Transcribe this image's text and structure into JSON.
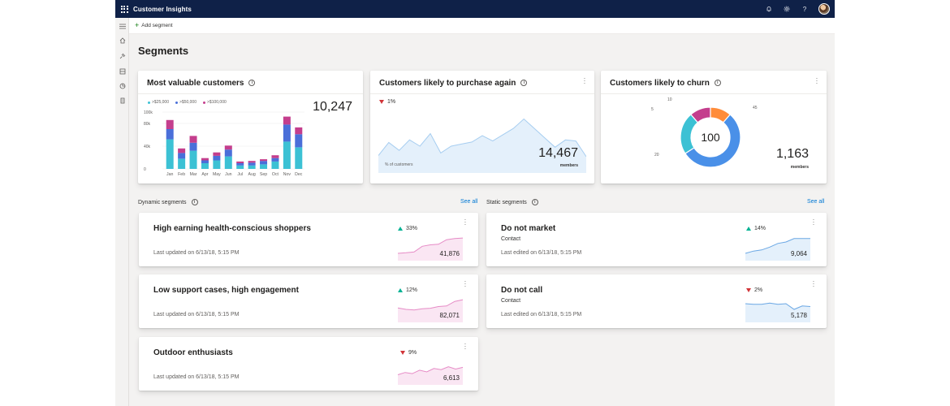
{
  "app": {
    "title": "Customer Insights"
  },
  "command_bar": {
    "add_segment": "Add segment"
  },
  "page": {
    "title": "Segments"
  },
  "cards": {
    "most_valuable": {
      "title": "Most valuable customers",
      "value": "10,247",
      "legend": [
        {
          "label": ">$25,000",
          "color": "#3cc1d4"
        },
        {
          "label": ">$50,000",
          "color": "#4a6fd9"
        },
        {
          "label": ">$100,000",
          "color": "#c43e8d"
        }
      ]
    },
    "purchase_again": {
      "title": "Customers likely to purchase again",
      "trend": "1%",
      "trend_direction": "down",
      "value": "14,467",
      "sub_label": "members",
      "chart_label": "% of customers"
    },
    "churn": {
      "title": "Customers likely to churn",
      "center_value": "100",
      "value": "1,163",
      "sub_label": "members",
      "labels": [
        "10",
        "45",
        "5",
        "20"
      ]
    }
  },
  "chart_data": [
    {
      "type": "bar",
      "stacked": true,
      "categories": [
        "Jan",
        "Feb",
        "Mar",
        "Apr",
        "May",
        "Jun",
        "Jul",
        "Aug",
        "Sep",
        "Oct",
        "Nov",
        "Dec"
      ],
      "series": [
        {
          "name": ">$25,000",
          "values": [
            52,
            18,
            32,
            10,
            15,
            22,
            6,
            6,
            8,
            13,
            48,
            38
          ],
          "color": "#3cc1d4"
        },
        {
          "name": ">$50,000",
          "values": [
            18,
            10,
            14,
            5,
            8,
            12,
            4,
            5,
            6,
            6,
            30,
            23
          ],
          "color": "#4a6fd9"
        },
        {
          "name": ">$100,000",
          "values": [
            16,
            8,
            12,
            4,
            6,
            7,
            3,
            3,
            3,
            5,
            14,
            12
          ],
          "color": "#c43e8d"
        }
      ],
      "yticks": [
        "100k",
        "80k",
        "40k",
        "0"
      ],
      "ylim": [
        0,
        100
      ]
    },
    {
      "type": "area",
      "values": [
        30,
        55,
        40,
        60,
        48,
        72,
        35,
        48,
        52,
        56,
        68,
        58,
        70,
        82,
        100,
        82,
        64,
        46,
        60,
        58,
        28
      ],
      "ylim": [
        0,
        110
      ],
      "color": "#a6cdf0"
    },
    {
      "type": "pie",
      "donut": true,
      "values": [
        10,
        45,
        5,
        20,
        20
      ],
      "colors": [
        "#c43e8d",
        "#ff8c3a",
        "#4a90e8",
        "#4a90e8",
        "#3cc1d4"
      ],
      "note": "slices: magenta 10, orange 45 label, blue large, teal 20, with center 100"
    }
  ],
  "dynamic_segments": {
    "label": "Dynamic segments",
    "see_all": "See all",
    "items": [
      {
        "name": "High earning health-conscious shoppers",
        "updated": "Last updated on 6/13/18, 5:15 PM",
        "trend": "33%",
        "direction": "up",
        "value": "41,876",
        "spark": [
          20,
          22,
          25,
          45,
          50,
          52,
          68,
          72,
          74
        ],
        "color": "#e68bc6"
      },
      {
        "name": "Low support cases, high engagement",
        "updated": "Last updated on 6/13/18, 5:15 PM",
        "trend": "12%",
        "direction": "up",
        "value": "82,071",
        "spark": [
          45,
          40,
          38,
          42,
          44,
          50,
          52,
          68,
          74
        ],
        "color": "#e68bc6"
      },
      {
        "name": "Outdoor enthusiasts",
        "updated": "Last updated on 6/13/18, 5:15 PM",
        "trend": "9%",
        "direction": "down",
        "value": "6,613",
        "spark": [
          30,
          38,
          34,
          46,
          40,
          52,
          48,
          58,
          50,
          56
        ],
        "color": "#e68bc6"
      }
    ]
  },
  "static_segments": {
    "label": "Static segments",
    "see_all": "See all",
    "items": [
      {
        "name": "Do not market",
        "sub": "Contact",
        "updated": "Last edited on 6/13/18, 5:15 PM",
        "trend": "14%",
        "direction": "up",
        "value": "9,064",
        "spark": [
          20,
          28,
          32,
          42,
          55,
          60,
          72,
          72,
          72
        ],
        "color": "#6aa7e4"
      },
      {
        "name": "Do not call",
        "sub": "Contact",
        "updated": "Last edited on 6/13/18, 5:15 PM",
        "trend": "2%",
        "direction": "down",
        "value": "5,178",
        "spark": [
          60,
          58,
          58,
          62,
          58,
          60,
          40,
          52,
          50
        ],
        "color": "#6aa7e4"
      }
    ]
  }
}
